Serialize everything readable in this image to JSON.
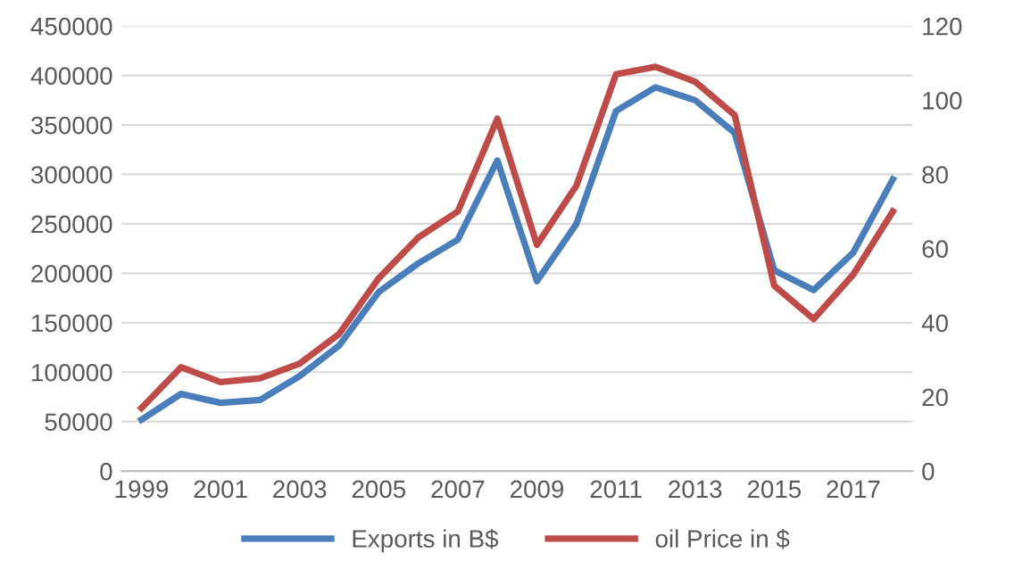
{
  "chart_data": {
    "type": "line",
    "categories": [
      "1999",
      null,
      "2001",
      null,
      "2003",
      null,
      "2005",
      null,
      "2007",
      null,
      "2009",
      null,
      "2011",
      null,
      "2013",
      null,
      "2015",
      null,
      "2017",
      null
    ],
    "series": [
      {
        "name": "Exports in B$",
        "color": "#4a7ebb",
        "values": [
          52000,
          78000,
          69000,
          72000,
          96000,
          127000,
          181000,
          210000,
          234000,
          314000,
          192000,
          250000,
          364000,
          388000,
          375000,
          342000,
          203000,
          183000,
          221000,
          295000
        ]
      },
      {
        "name": "oil Price in $",
        "color": "#be4b48",
        "axis": "y2",
        "values": [
          17,
          28,
          24,
          25,
          29,
          37,
          52,
          63,
          70,
          95,
          61,
          77,
          107,
          109,
          105,
          96,
          50,
          41,
          53,
          70
        ]
      }
    ],
    "ylim": [
      0,
      450000
    ],
    "yticks": [
      0,
      50000,
      100000,
      150000,
      200000,
      250000,
      300000,
      350000,
      400000,
      450000
    ],
    "y2lim": [
      0,
      120
    ],
    "y2ticks": [
      0,
      20,
      40,
      60,
      80,
      100,
      120
    ],
    "grid": "y",
    "legend": "bottom",
    "marker": "none",
    "line_style": "solid"
  }
}
